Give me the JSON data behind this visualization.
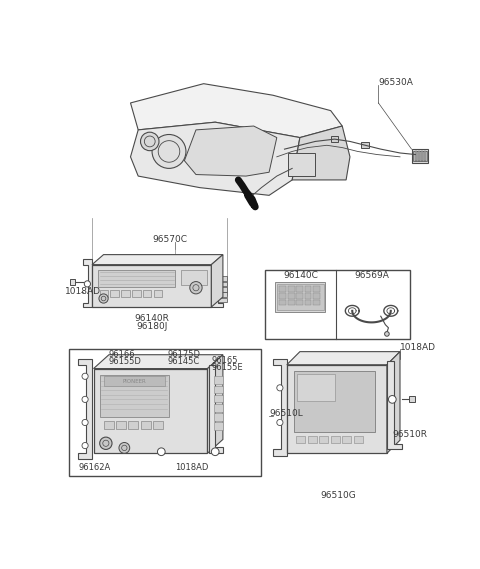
{
  "bg_color": "#ffffff",
  "line_color": "#4a4a4a",
  "text_color": "#3a3a3a",
  "light_gray": "#e8e8e8",
  "mid_gray": "#c8c8c8",
  "dark_gray": "#888888",
  "labels": {
    "lbl_96530A": "96530A",
    "lbl_96570C": "96570C",
    "lbl_1018AD_ml": "1018AD",
    "lbl_96140R": "96140R",
    "lbl_96180J": "96180J",
    "lbl_96140C": "96140C",
    "lbl_96569A": "96569A",
    "lbl_96166": "96166",
    "lbl_96155D": "96155D",
    "lbl_96175D": "96175D",
    "lbl_96145C": "96145C",
    "lbl_96165": "96165",
    "lbl_96155E": "96155E",
    "lbl_96162A": "96162A",
    "lbl_1018AD_bl": "1018AD",
    "lbl_1018AD_br": "1018AD",
    "lbl_96510L": "96510L",
    "lbl_96510R": "96510R",
    "lbl_96510G": "96510G"
  }
}
